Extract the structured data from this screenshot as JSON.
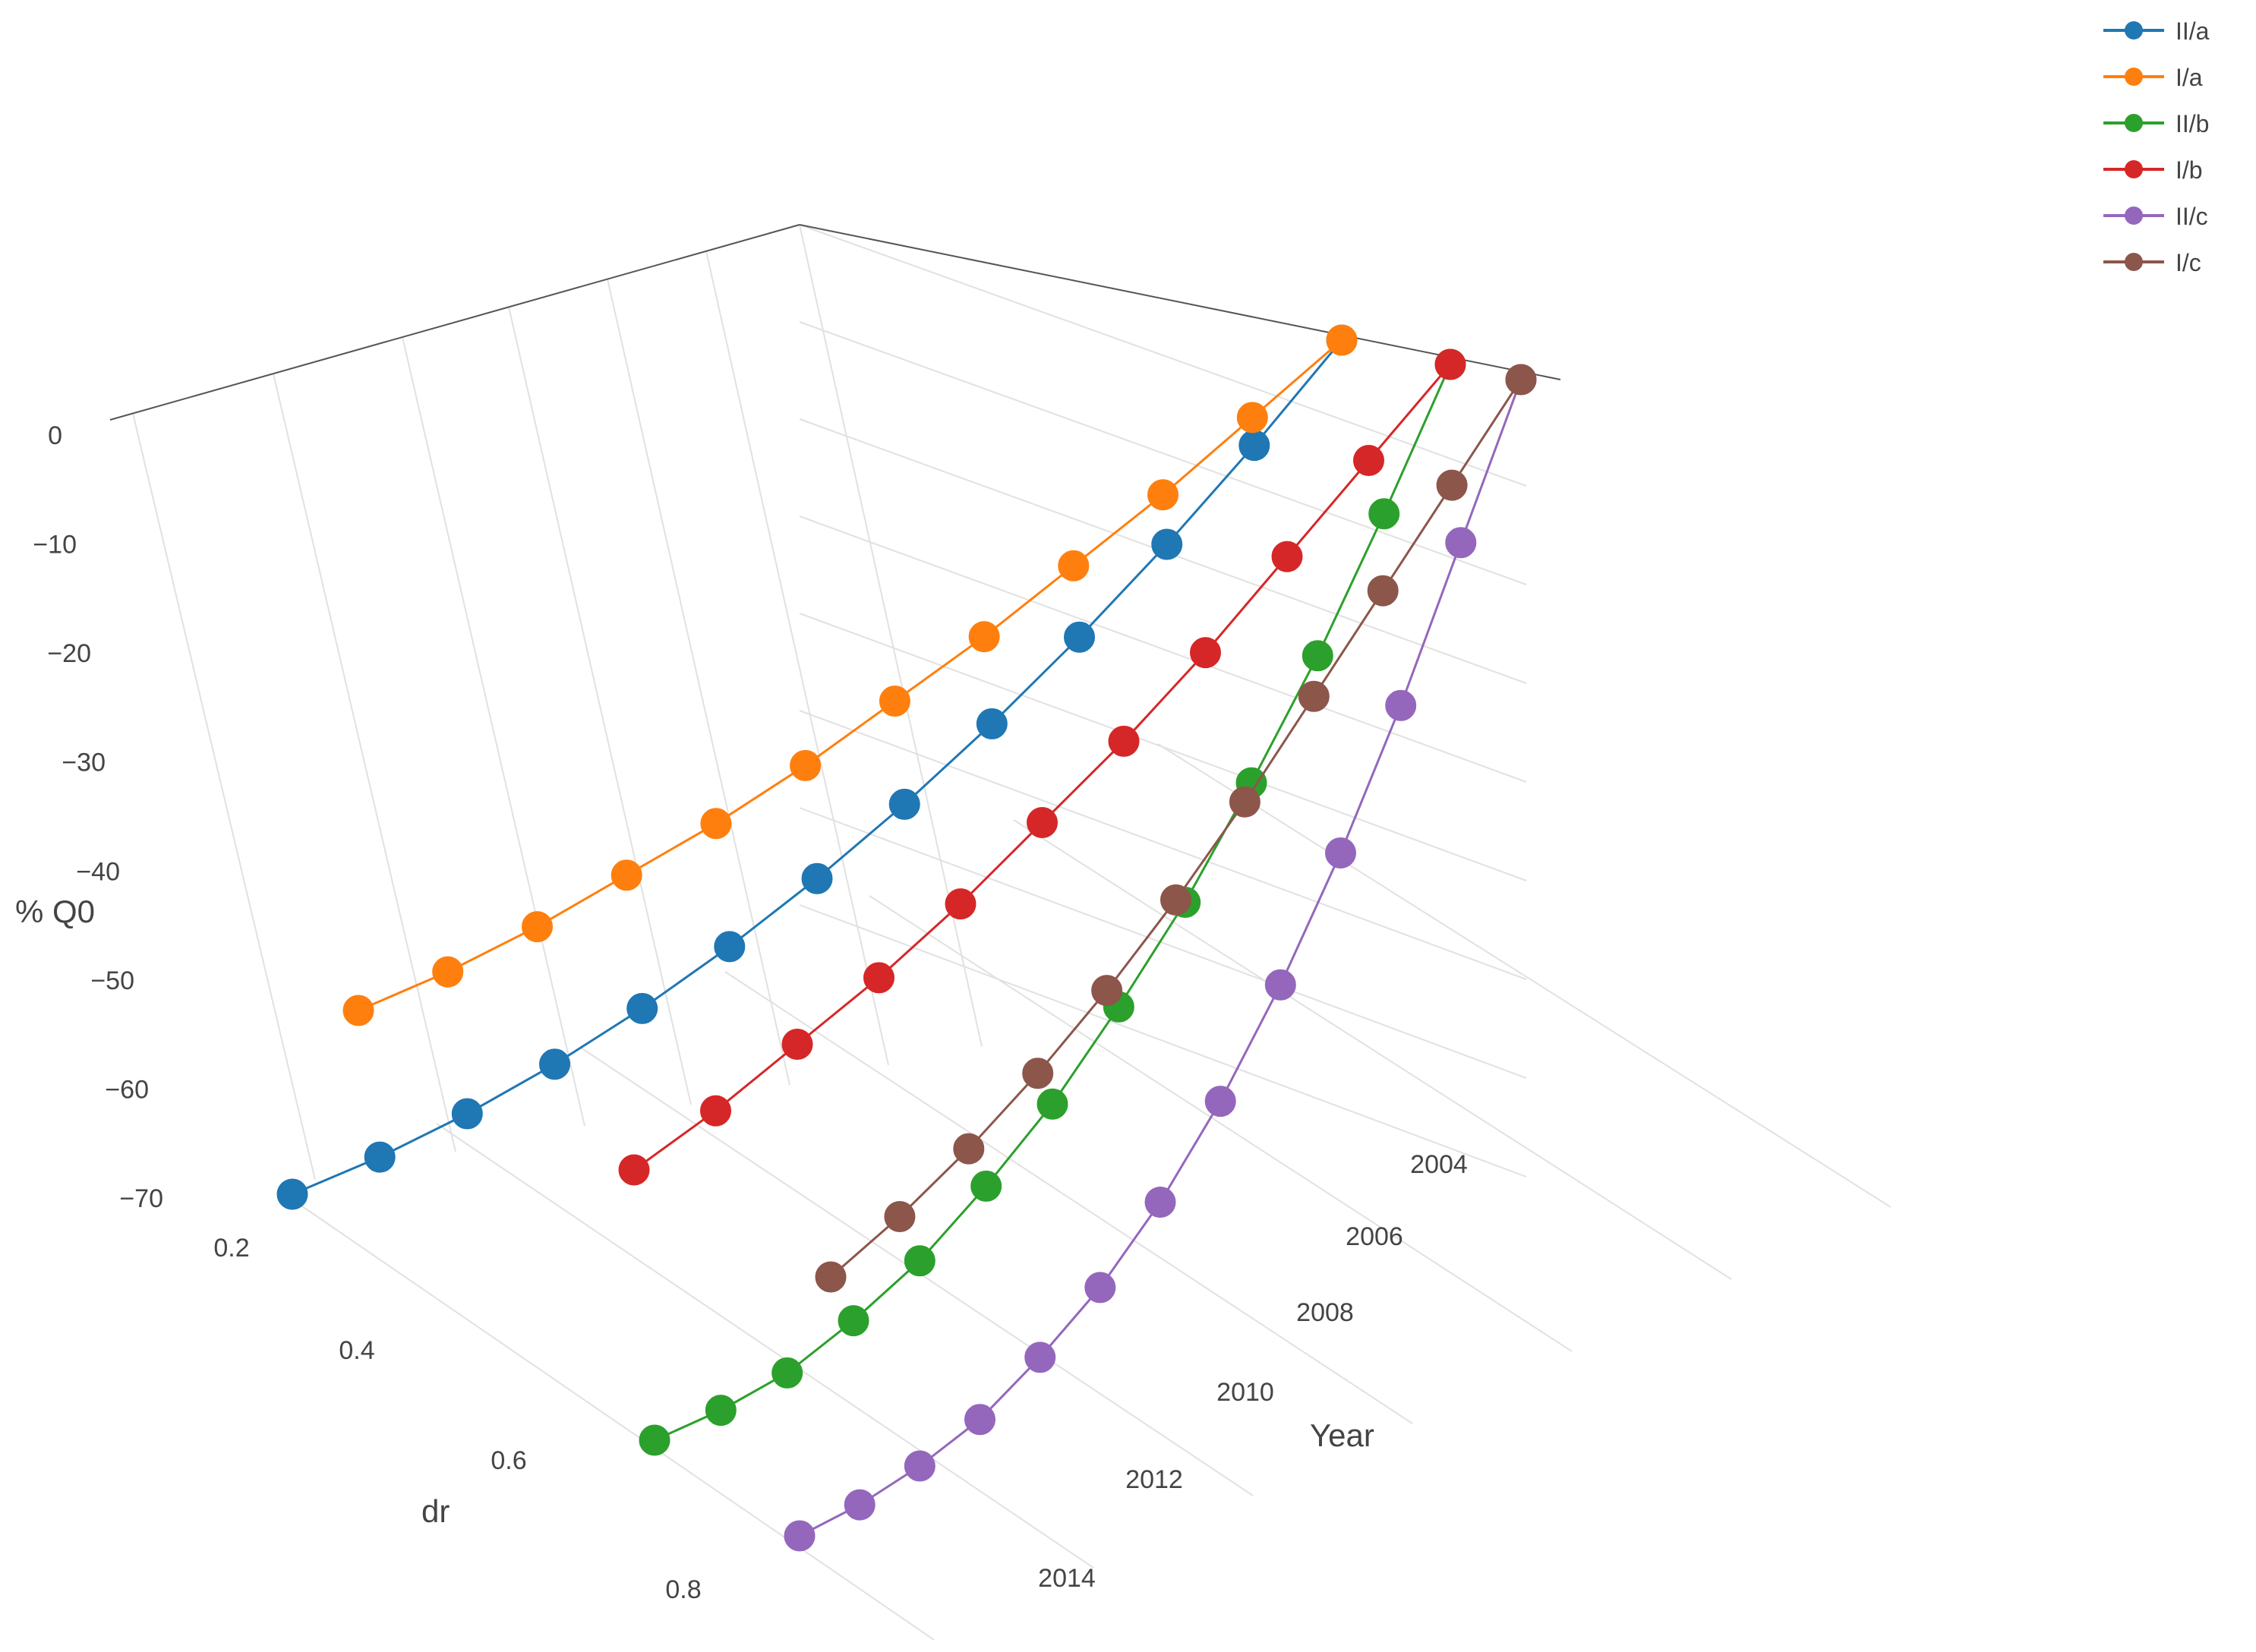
{
  "chart_data": {
    "type": "scatter3d",
    "z_axis": {
      "title": "% Q0",
      "ticks": [
        "0",
        "−10",
        "−20",
        "−30",
        "−40",
        "−50",
        "−60",
        "−70"
      ],
      "range": [
        -70,
        0
      ]
    },
    "x_axis": {
      "title": "dr",
      "ticks": [
        "0.2",
        "0.4",
        "0.6",
        "0.8"
      ],
      "range": [
        0.2,
        0.9
      ]
    },
    "y_axis": {
      "title": "Year",
      "ticks": [
        "2004",
        "2006",
        "2008",
        "2010",
        "2012",
        "2014"
      ],
      "range": [
        2003,
        2015
      ]
    },
    "legend": {
      "placement": "top-right"
    },
    "series": [
      {
        "name": "II/a",
        "color": "#1f77b4",
        "dr": 0.2,
        "years": [
          2003,
          2004,
          2005,
          2006,
          2007,
          2008,
          2009,
          2010,
          2011,
          2012,
          2013,
          2014,
          2015
        ],
        "values": [
          0.0,
          -8.5,
          -16.5,
          -24.0,
          -31.0,
          -37.5,
          -43.5,
          -49.0,
          -54.0,
          -58.5,
          -62.5,
          -66.0,
          -69.0
        ]
      },
      {
        "name": "I/a",
        "color": "#ff7f0e",
        "dr": 0.2,
        "years": [
          2003,
          2004,
          2005,
          2006,
          2007,
          2008,
          2009,
          2010,
          2011,
          2012,
          2013,
          2014
        ],
        "values": [
          0.0,
          -6.0,
          -12.0,
          -17.5,
          -23.0,
          -28.0,
          -33.0,
          -37.5,
          -41.5,
          -45.5,
          -49.0,
          -52.0
        ]
      },
      {
        "name": "II/b",
        "color": "#2ca02c",
        "dr": 0.5,
        "years": [
          2003,
          2004,
          2005,
          2006,
          2007,
          2008,
          2009,
          2010,
          2011,
          2012,
          2013,
          2014,
          2015
        ],
        "values": [
          0.0,
          -10.0,
          -19.5,
          -28.0,
          -36.0,
          -43.0,
          -49.5,
          -55.0,
          -60.0,
          -64.0,
          -67.5,
          -70.0,
          -72.0
        ]
      },
      {
        "name": "I/b",
        "color": "#d62728",
        "dr": 0.5,
        "years": [
          2003,
          2004,
          2005,
          2006,
          2007,
          2008,
          2009,
          2010,
          2011,
          2012,
          2013
        ],
        "values": [
          0.0,
          -6.5,
          -13.0,
          -19.5,
          -25.5,
          -31.0,
          -36.5,
          -41.5,
          -46.0,
          -50.5,
          -54.5
        ]
      },
      {
        "name": "II/c",
        "color": "#9467bd",
        "dr": 0.8,
        "years": [
          2003,
          2004,
          2005,
          2006,
          2007,
          2008,
          2009,
          2010,
          2011,
          2012,
          2013,
          2014,
          2015
        ],
        "values": [
          0.0,
          -10.5,
          -21.0,
          -30.5,
          -39.0,
          -46.5,
          -53.0,
          -58.5,
          -63.0,
          -67.0,
          -70.0,
          -72.5,
          -74.5
        ]
      },
      {
        "name": "I/c",
        "color": "#8c564b",
        "dr": 0.5,
        "years": [
          2003,
          2004,
          2005,
          2006,
          2007,
          2008,
          2009,
          2010,
          2011,
          2012,
          2013
        ],
        "values": [
          0.0,
          -7.0,
          -14.0,
          -21.0,
          -28.0,
          -34.5,
          -40.5,
          -46.0,
          -51.0,
          -55.5,
          -59.5
        ]
      }
    ]
  }
}
